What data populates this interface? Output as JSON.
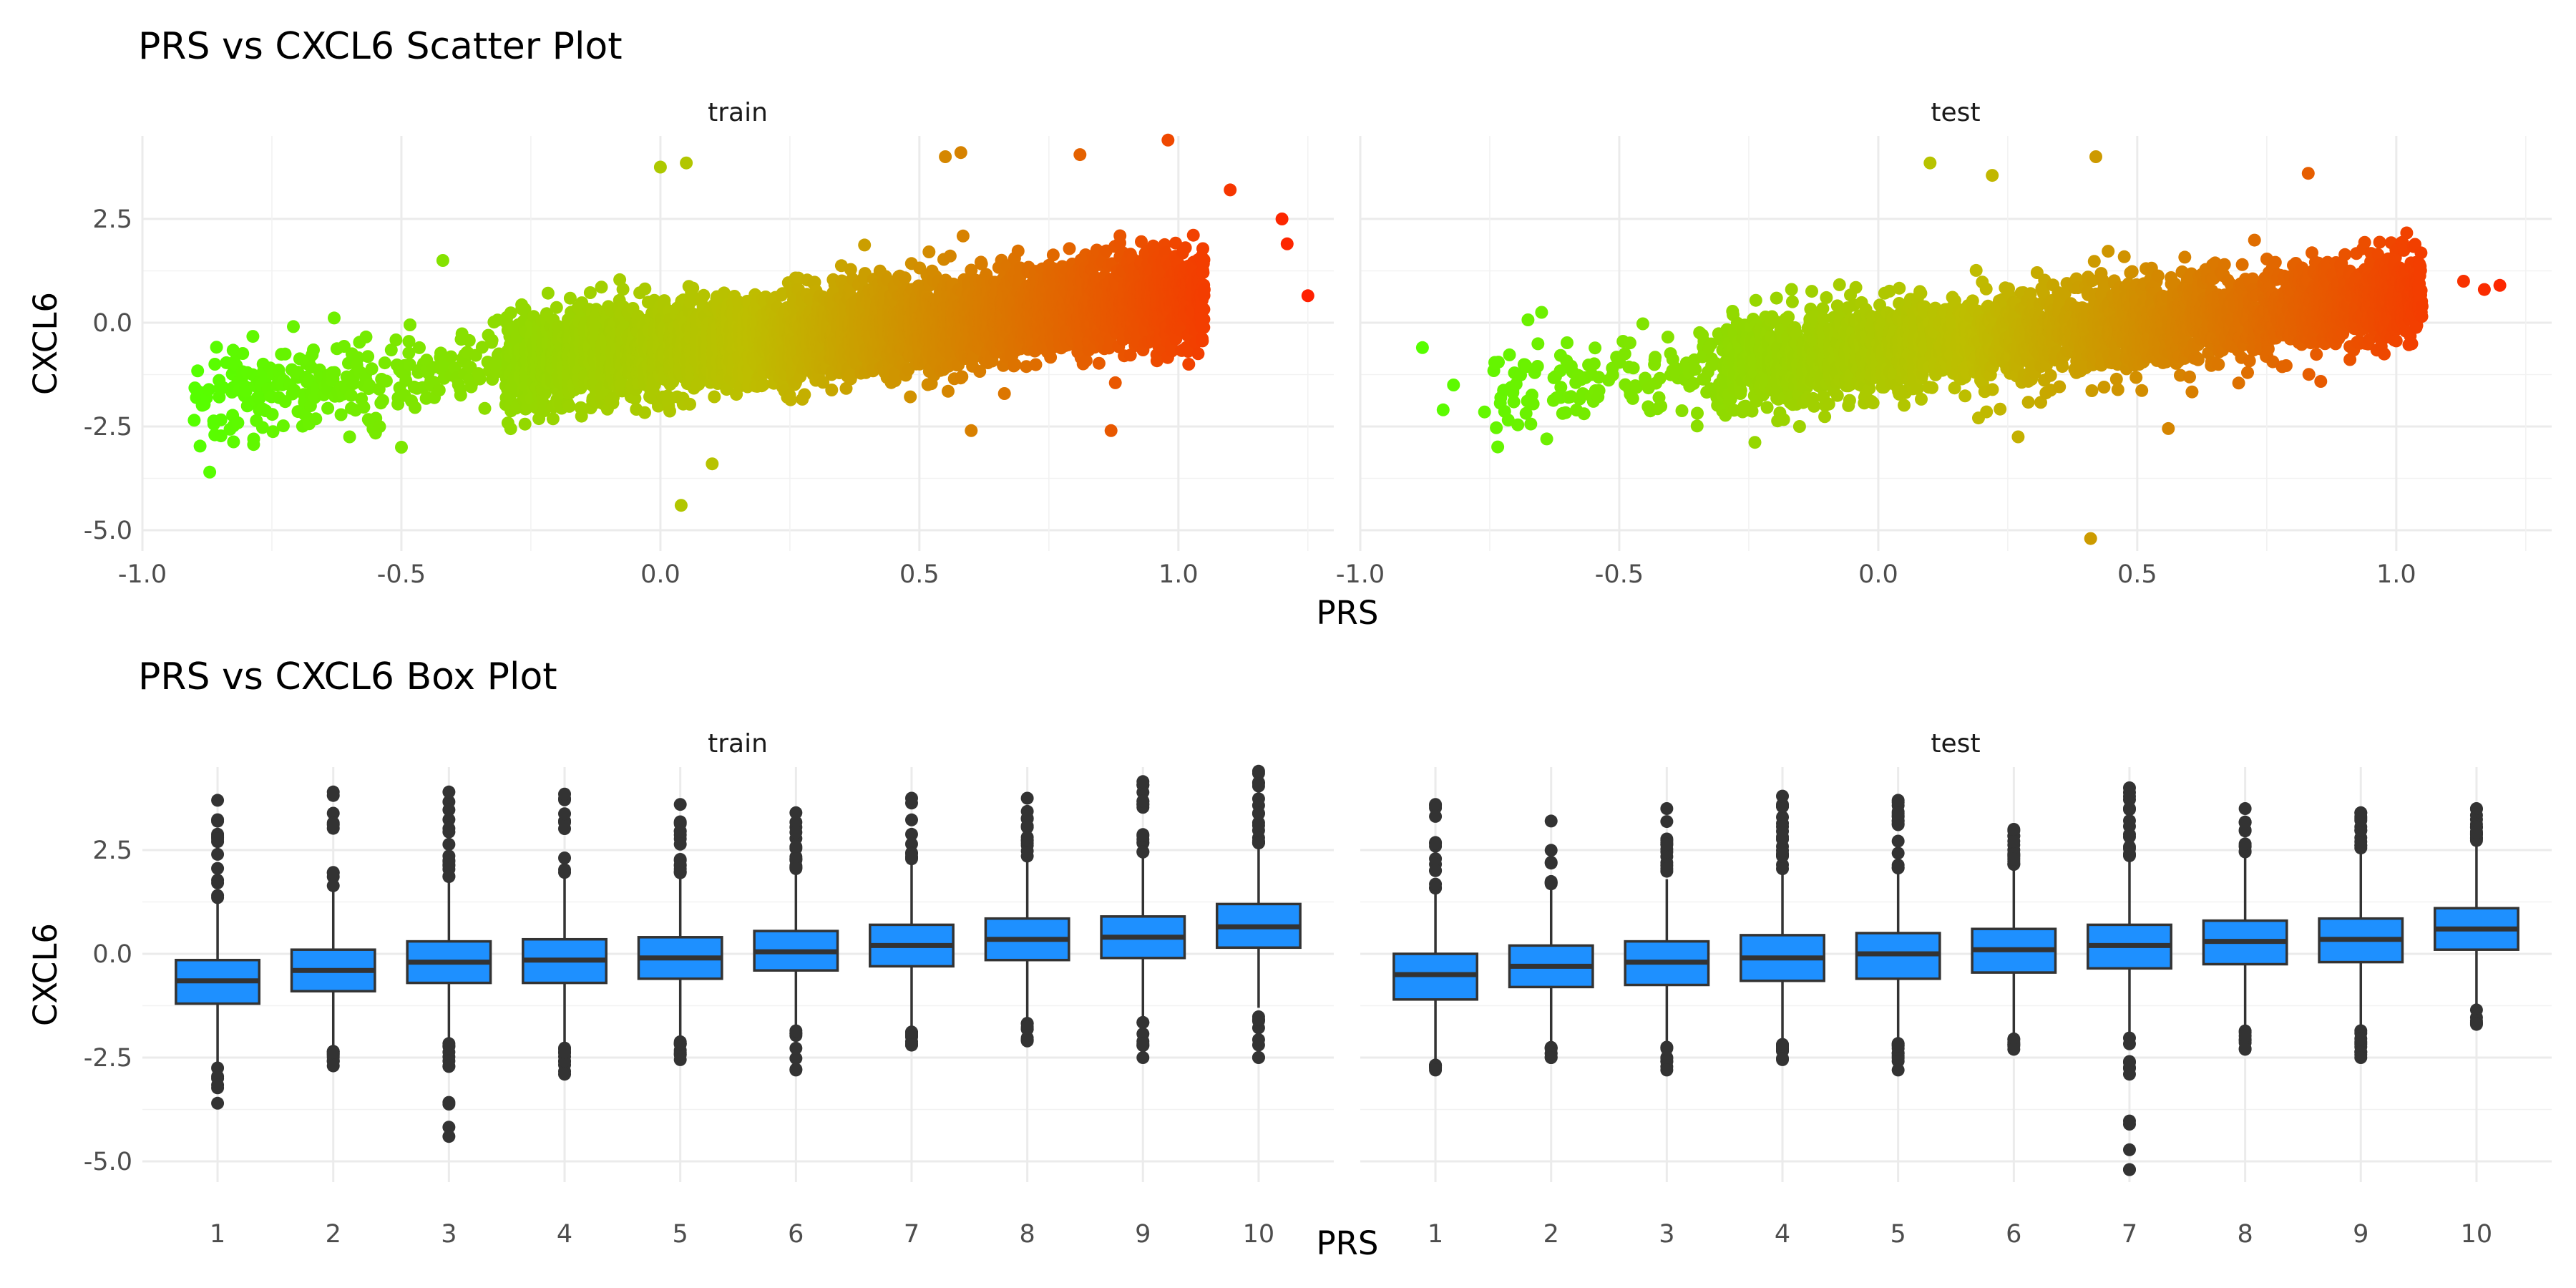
{
  "colors": {
    "low": "#55ff00",
    "mid": "#bebe00",
    "high": "#ff2000",
    "box_fill": "#1e90ff",
    "box_line": "#333333"
  },
  "chart_data": [
    {
      "type": "scatter",
      "title": "PRS vs CXCL6 Scatter Plot",
      "xlabel": "PRS",
      "ylabel": "CXCL6",
      "facets": [
        "train",
        "test"
      ],
      "xlim": [
        -1.0,
        1.3
      ],
      "ylim": [
        -5.5,
        4.5
      ],
      "x_ticks": [
        -1.0,
        -0.5,
        0.0,
        0.5,
        1.0
      ],
      "x_tick_labels": [
        "-1.0",
        "-0.5",
        "0.0",
        "0.5",
        "1.0"
      ],
      "y_ticks": [
        -5.0,
        -2.5,
        0.0,
        2.5
      ],
      "y_tick_labels": [
        "-5.0",
        "-2.5",
        "0.0",
        "2.5"
      ],
      "color_scale": "PRS value mapped green (low) to yellow to red (high)",
      "trend": {
        "intercept": -0.65,
        "slope": 1.25
      },
      "panels": [
        {
          "facet": "train",
          "dense_x_range": [
            -0.3,
            1.05
          ],
          "sparse_x_range": [
            -0.9,
            -0.3
          ],
          "extreme_points": [
            {
              "x": -0.9,
              "y": -2.35
            },
            {
              "x": -0.87,
              "y": -3.6
            },
            {
              "x": -0.86,
              "y": -1.0
            },
            {
              "x": -0.74,
              "y": -1.5
            },
            {
              "x": -0.6,
              "y": -2.75
            },
            {
              "x": -0.5,
              "y": -3.0
            },
            {
              "x": -0.42,
              "y": 1.5
            },
            {
              "x": 0.04,
              "y": -4.4
            },
            {
              "x": 0.0,
              "y": 3.75
            },
            {
              "x": 0.05,
              "y": 3.85
            },
            {
              "x": 0.1,
              "y": -3.4
            },
            {
              "x": 0.55,
              "y": 4.0
            },
            {
              "x": 0.58,
              "y": 4.1
            },
            {
              "x": 0.6,
              "y": -2.6
            },
            {
              "x": 0.81,
              "y": 4.05
            },
            {
              "x": 0.87,
              "y": -2.6
            },
            {
              "x": 0.98,
              "y": 4.4
            },
            {
              "x": 1.02,
              "y": -1.0
            },
            {
              "x": 1.1,
              "y": 3.2
            },
            {
              "x": 1.2,
              "y": 2.5
            },
            {
              "x": 1.21,
              "y": 1.9
            },
            {
              "x": 1.25,
              "y": 0.65
            }
          ]
        },
        {
          "facet": "test",
          "dense_x_range": [
            -0.3,
            1.05
          ],
          "sparse_x_range": [
            -0.75,
            -0.3
          ],
          "extreme_points": [
            {
              "x": -0.88,
              "y": -0.6
            },
            {
              "x": -0.84,
              "y": -2.1
            },
            {
              "x": -0.82,
              "y": -1.5
            },
            {
              "x": -0.76,
              "y": -2.15
            },
            {
              "x": -0.65,
              "y": 0.25
            },
            {
              "x": -0.64,
              "y": -2.8
            },
            {
              "x": 0.1,
              "y": 3.85
            },
            {
              "x": 0.22,
              "y": 3.55
            },
            {
              "x": 0.27,
              "y": -2.75
            },
            {
              "x": 0.41,
              "y": -5.2
            },
            {
              "x": 0.42,
              "y": 4.0
            },
            {
              "x": 0.56,
              "y": -2.55
            },
            {
              "x": 0.83,
              "y": 3.6
            },
            {
              "x": 1.13,
              "y": 1.0
            },
            {
              "x": 1.17,
              "y": 0.8
            },
            {
              "x": 1.2,
              "y": 0.9
            }
          ]
        }
      ]
    },
    {
      "type": "box",
      "title": "PRS vs CXCL6 Box Plot",
      "xlabel": "PRS",
      "ylabel": "CXCL6",
      "facets": [
        "train",
        "test"
      ],
      "categories": [
        "1",
        "2",
        "3",
        "4",
        "5",
        "6",
        "7",
        "8",
        "9",
        "10"
      ],
      "ylim": [
        -5.5,
        4.5
      ],
      "y_ticks": [
        -5.0,
        -2.5,
        0.0,
        2.5
      ],
      "y_tick_labels": [
        "-5.0",
        "-2.5",
        "0.0",
        "2.5"
      ],
      "panels": [
        {
          "facet": "train",
          "boxes": [
            {
              "q1": -1.2,
              "median": -0.65,
              "q3": -0.15,
              "low": -2.7,
              "high": 1.3,
              "out_min": -3.6,
              "out_max": 3.7
            },
            {
              "q1": -0.9,
              "median": -0.4,
              "q3": 0.1,
              "low": -2.3,
              "high": 1.5,
              "out_min": -2.7,
              "out_max": 3.9
            },
            {
              "q1": -0.7,
              "median": -0.2,
              "q3": 0.3,
              "low": -2.1,
              "high": 1.8,
              "out_min": -4.4,
              "out_max": 3.9
            },
            {
              "q1": -0.7,
              "median": -0.15,
              "q3": 0.35,
              "low": -2.2,
              "high": 1.9,
              "out_min": -2.9,
              "out_max": 3.85
            },
            {
              "q1": -0.6,
              "median": -0.1,
              "q3": 0.4,
              "low": -2.05,
              "high": 1.9,
              "out_min": -2.55,
              "out_max": 3.6
            },
            {
              "q1": -0.4,
              "median": 0.05,
              "q3": 0.55,
              "low": -1.8,
              "high": 2.0,
              "out_min": -2.8,
              "out_max": 3.4
            },
            {
              "q1": -0.3,
              "median": 0.2,
              "q3": 0.7,
              "low": -1.8,
              "high": 2.2,
              "out_min": -2.2,
              "out_max": 3.75
            },
            {
              "q1": -0.15,
              "median": 0.35,
              "q3": 0.85,
              "low": -1.6,
              "high": 2.3,
              "out_min": -2.1,
              "out_max": 3.75
            },
            {
              "q1": -0.1,
              "median": 0.4,
              "q3": 0.9,
              "low": -1.6,
              "high": 2.4,
              "out_min": -2.5,
              "out_max": 4.15
            },
            {
              "q1": 0.15,
              "median": 0.65,
              "q3": 1.2,
              "low": -1.3,
              "high": 2.6,
              "out_min": -2.5,
              "out_max": 4.4
            }
          ]
        },
        {
          "facet": "test",
          "boxes": [
            {
              "q1": -1.1,
              "median": -0.5,
              "q3": 0.0,
              "low": -2.6,
              "high": 1.5,
              "out_min": -2.8,
              "out_max": 3.6
            },
            {
              "q1": -0.8,
              "median": -0.3,
              "q3": 0.2,
              "low": -2.2,
              "high": 1.6,
              "out_min": -2.5,
              "out_max": 3.2
            },
            {
              "q1": -0.75,
              "median": -0.2,
              "q3": 0.3,
              "low": -2.2,
              "high": 1.8,
              "out_min": -2.8,
              "out_max": 3.5
            },
            {
              "q1": -0.65,
              "median": -0.1,
              "q3": 0.45,
              "low": -2.1,
              "high": 2.0,
              "out_min": -2.55,
              "out_max": 3.8
            },
            {
              "q1": -0.6,
              "median": 0.0,
              "q3": 0.5,
              "low": -2.1,
              "high": 2.0,
              "out_min": -2.8,
              "out_max": 3.7
            },
            {
              "q1": -0.45,
              "median": 0.1,
              "q3": 0.6,
              "low": -2.0,
              "high": 2.1,
              "out_min": -2.3,
              "out_max": 3.0
            },
            {
              "q1": -0.35,
              "median": 0.2,
              "q3": 0.7,
              "low": -1.9,
              "high": 2.3,
              "out_min": -5.2,
              "out_max": 4.0
            },
            {
              "q1": -0.25,
              "median": 0.3,
              "q3": 0.8,
              "low": -1.8,
              "high": 2.4,
              "out_min": -2.3,
              "out_max": 3.5
            },
            {
              "q1": -0.2,
              "median": 0.35,
              "q3": 0.85,
              "low": -1.8,
              "high": 2.5,
              "out_min": -2.5,
              "out_max": 3.4
            },
            {
              "q1": 0.1,
              "median": 0.6,
              "q3": 1.1,
              "low": -1.3,
              "high": 2.6,
              "out_min": -1.7,
              "out_max": 3.5
            }
          ]
        }
      ]
    }
  ]
}
